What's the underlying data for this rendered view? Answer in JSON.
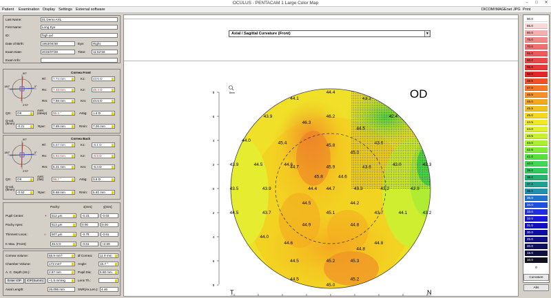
{
  "window": {
    "title": "OCULUS  -  PENTACAM  1 Large Color Map"
  },
  "menu": {
    "items": [
      "Patient",
      "Examination",
      "Display",
      "Settings",
      "External software"
    ],
    "right_items": [
      "DICOM",
      "IMAGEnet",
      "JPG",
      "Print"
    ]
  },
  "patient": {
    "last_name_label": "Last Name:",
    "last_name": "01 Demo AXL",
    "first_name_label": "First Name:",
    "first_name": "Long Eye",
    "id_label": "ID:",
    "id": "high axl",
    "dob_label": "Date of Birth:",
    "dob": "1953/04/30",
    "eye_label": "Eye:",
    "eye": "Right",
    "exam_date_label": "Exam Date:",
    "exam_date": "2015/07/28",
    "time_label": "Time:",
    "time": "11:52:56",
    "exam_info_label": "Exam Info:",
    "exam_info": ""
  },
  "cornea_front": {
    "title": "Cornea Front",
    "rf_label": "Rf:",
    "rf": "7.74 mm",
    "k1_label": "K1:",
    "k1": "43.6 D",
    "rs_label": "Rs:",
    "rs": "7.43 mm",
    "k2_label": "K2:",
    "k2": "45.4 D",
    "rm_label": "Rm:",
    "rm": "7.59 mm",
    "km_label": "Km:",
    "km": "44.5 D",
    "qs_label": "QS:",
    "qs": "OK",
    "axis_label": "Axis:\n(steep)",
    "axis": "96.2 °",
    "astig_label": "Astig:",
    "astig": "1.8 D",
    "qval_label": "Q-val.\n(8mm)",
    "qval": "-0.21",
    "rper_label": "Rper:",
    "rper": "7.69 mm",
    "rmin_label": "Rmin:",
    "rmin": "7.26 mm",
    "ax_90": "90°",
    "ax_180": "180°",
    "ax_270": "270°",
    "ax_0": "0°"
  },
  "cornea_back": {
    "title": "Cornea Back",
    "rf_label": "Rf:",
    "rf": "6.57 mm",
    "k1_label": "K1:",
    "k1": "-6.1 D",
    "rs_label": "Rs:",
    "rs": "5.94 mm",
    "k2_label": "K2:",
    "k2": "-6.9 D",
    "rm_label": "Rm:",
    "rm": "6.21 mm",
    "km_label": "Km:",
    "km": "-6.4 D",
    "qs_label": "QS:",
    "qs": "OK",
    "axis_label": "Axis:\n(flat)",
    "axis": "98.7 °",
    "astig_label": "Astig:",
    "astig": "0.8 D",
    "qval_label": "Q-val.\n(8mm)",
    "qval": "-0.52",
    "rper_label": "Rper:",
    "rper": "6.68 mm",
    "rmin_label": "Rmin:",
    "rmin": "5.61 mm",
    "ax_90": "90°",
    "ax_180": "180°",
    "ax_270": "270°",
    "ax_0": "0°"
  },
  "pachy": {
    "col_pachy": "Pachy:",
    "col_x": "x[mm]",
    "col_y": "y[mm]",
    "rows": [
      {
        "label": "Pupil Center:",
        "symbol": "+",
        "value": "512 µm",
        "x": "-0.23",
        "y": "-0.03"
      },
      {
        "label": "Pachy Apex:",
        "symbol": "",
        "value": "513 µm",
        "x": "0.00",
        "y": "0.00"
      },
      {
        "label": "Thinnest Locat.:",
        "symbol": "○",
        "value": "507 µm",
        "x": "-0.78",
        "y": "-0.61"
      },
      {
        "label": "K Max. (Front):",
        "symbol": "",
        "value": "46.5 D",
        "x": "-0.61",
        "y": "+2.69"
      }
    ]
  },
  "chamber": {
    "cornea_vol_label": "Cornea Volume:",
    "cornea_vol": "55.9 mm³",
    "cornea_dia_label": "Ø Cornea:",
    "cornea_dia": "11.9 mm",
    "chamber_vol_label": "Chamber Volume:",
    "chamber_vol": "173 mm³",
    "angle_label": "Angle:",
    "angle": "15.7 °",
    "acd_label": "A. C. Depth (Int.):",
    "acd": "2.87 mm",
    "pupil_dia_label": "Pupil Dia:",
    "pupil_dia": "5.50 mm",
    "enter_iop": "Enter IOP",
    "iop_summ": "IOP(Summ)",
    "iop": "+1.5 mmHg",
    "lens_th_label": "Lens Th.:",
    "lens_th": "",
    "axial_length_label": "Axial Length:",
    "axial_length": "26.095 mm",
    "snr_label": "SNR(Ax.Len.):",
    "snr": "4.46"
  },
  "map": {
    "dropdown": "Axial / Sagittal Curvature (Front)",
    "eye_code": "OD",
    "left_marker": "T",
    "right_marker": "N",
    "zoom_label": "8mm",
    "y_ticks": [
      "8",
      "6",
      "4",
      "2",
      "0",
      "2",
      "4",
      "6",
      "8"
    ],
    "x_ticks": [
      "8",
      "6",
      "4",
      "2",
      "0",
      "2",
      "4",
      "6",
      "8"
    ],
    "values": [
      {
        "t": "44.4",
        "x": 0,
        "y": 8
      },
      {
        "t": "43.3",
        "x": 3,
        "y": 7.5
      },
      {
        "t": "44.1",
        "x": -3,
        "y": 7.5
      },
      {
        "t": "42.4",
        "x": 5.2,
        "y": 6
      },
      {
        "t": "43.9",
        "x": -5.2,
        "y": 6
      },
      {
        "t": "46.2",
        "x": 0,
        "y": 6
      },
      {
        "t": "46.3",
        "x": -2,
        "y": 5.5
      },
      {
        "t": "44.5",
        "x": 2.5,
        "y": 5
      },
      {
        "t": "44.0",
        "x": -7,
        "y": 4
      },
      {
        "t": "45.4",
        "x": -4,
        "y": 3.8
      },
      {
        "t": "45.8",
        "x": 0,
        "y": 3.6
      },
      {
        "t": "43.6",
        "x": 4,
        "y": 3.8
      },
      {
        "t": "44.6",
        "x": -3.5,
        "y": 2
      },
      {
        "t": "45.0",
        "x": 2,
        "y": 3
      },
      {
        "t": "43.9",
        "x": -8,
        "y": 2
      },
      {
        "t": "44.5",
        "x": -6,
        "y": 2
      },
      {
        "t": "44.7",
        "x": -3,
        "y": 1.8
      },
      {
        "t": "45.9",
        "x": 0,
        "y": 1.8
      },
      {
        "t": "43.6",
        "x": 3,
        "y": 1.8
      },
      {
        "t": "43.0",
        "x": 5.5,
        "y": 2
      },
      {
        "t": "42.3",
        "x": 8,
        "y": 2
      },
      {
        "t": "45.8",
        "x": -1,
        "y": 1
      },
      {
        "t": "44.6",
        "x": 1,
        "y": 1
      },
      {
        "t": "43.5",
        "x": -8,
        "y": 0
      },
      {
        "t": "43.9",
        "x": -5.3,
        "y": 0
      },
      {
        "t": "44.4",
        "x": -1.5,
        "y": 0
      },
      {
        "t": "44.7",
        "x": 0,
        "y": 0
      },
      {
        "t": "43.3",
        "x": 2.3,
        "y": 0
      },
      {
        "t": "43.2",
        "x": 4.5,
        "y": 0
      },
      {
        "t": "42.9",
        "x": 7,
        "y": 0
      },
      {
        "t": "44.5",
        "x": -8,
        "y": -2
      },
      {
        "t": "43.7",
        "x": -5.3,
        "y": -2
      },
      {
        "t": "44.5",
        "x": -2,
        "y": -1.2
      },
      {
        "t": "45.1",
        "x": 0,
        "y": -2
      },
      {
        "t": "44.2",
        "x": 2,
        "y": -1.2
      },
      {
        "t": "43.7",
        "x": 4,
        "y": -2
      },
      {
        "t": "44.1",
        "x": 6,
        "y": -2
      },
      {
        "t": "43.2",
        "x": 8,
        "y": -2
      },
      {
        "t": "44.9",
        "x": -2,
        "y": -3
      },
      {
        "t": "44.8",
        "x": 2,
        "y": -3
      },
      {
        "t": "44.0",
        "x": -5.5,
        "y": -4
      },
      {
        "t": "44.6",
        "x": -3.5,
        "y": -4.5
      },
      {
        "t": "44.8",
        "x": 2.5,
        "y": -5
      },
      {
        "t": "44.5",
        "x": -3,
        "y": -6
      },
      {
        "t": "45.2",
        "x": 0,
        "y": -6
      },
      {
        "t": "45.3",
        "x": 2,
        "y": -6
      },
      {
        "t": "44.5",
        "x": -3,
        "y": -7.5
      },
      {
        "t": "45.0",
        "x": 0,
        "y": -8
      },
      {
        "t": "45.2",
        "x": 2,
        "y": -7.5
      },
      {
        "t": "44.8",
        "x": 4,
        "y": -4.5
      }
    ]
  },
  "scale": {
    "values": [
      "90.0",
      "85.0",
      "80.0",
      "75.0",
      "70.0",
      "65.0",
      "60.0",
      "55.0",
      "50.0",
      "48.5",
      "47.0",
      "46.5",
      "46.0",
      "45.5",
      "45.0",
      "44.5",
      "44.0",
      "43.5",
      "43.0",
      "42.5",
      "41.0",
      "40.0",
      "39.0",
      "38.0",
      "37.0",
      "36.0",
      "35.0",
      "34.0",
      "33.0",
      "32.0",
      "31.0",
      "30.0",
      "25.0",
      "20.0",
      "15.0",
      "10.0"
    ],
    "colors": [
      "#ffffff",
      "#f8d8d8",
      "#f4b0b0",
      "#f08888",
      "#ee7070",
      "#ec5a5a",
      "#ea4848",
      "#e83838",
      "#e02828",
      "#f0502a",
      "#f47828",
      "#f49028",
      "#f4a820",
      "#f4c020",
      "#f4d820",
      "#f0e828",
      "#e0f030",
      "#c8f030",
      "#a8f030",
      "#80ec38",
      "#58e040",
      "#40d850",
      "#30c860",
      "#28b070",
      "#20a090",
      "#2090b0",
      "#2070d0",
      "#2050e0",
      "#2030e0",
      "#1818d8",
      "#1010c0",
      "#1010a0",
      "#101080",
      "#101060",
      "#101040",
      "#101020"
    ],
    "step_label": "0",
    "btn_curvature": "Curvature",
    "btn_abs": "Abs"
  }
}
